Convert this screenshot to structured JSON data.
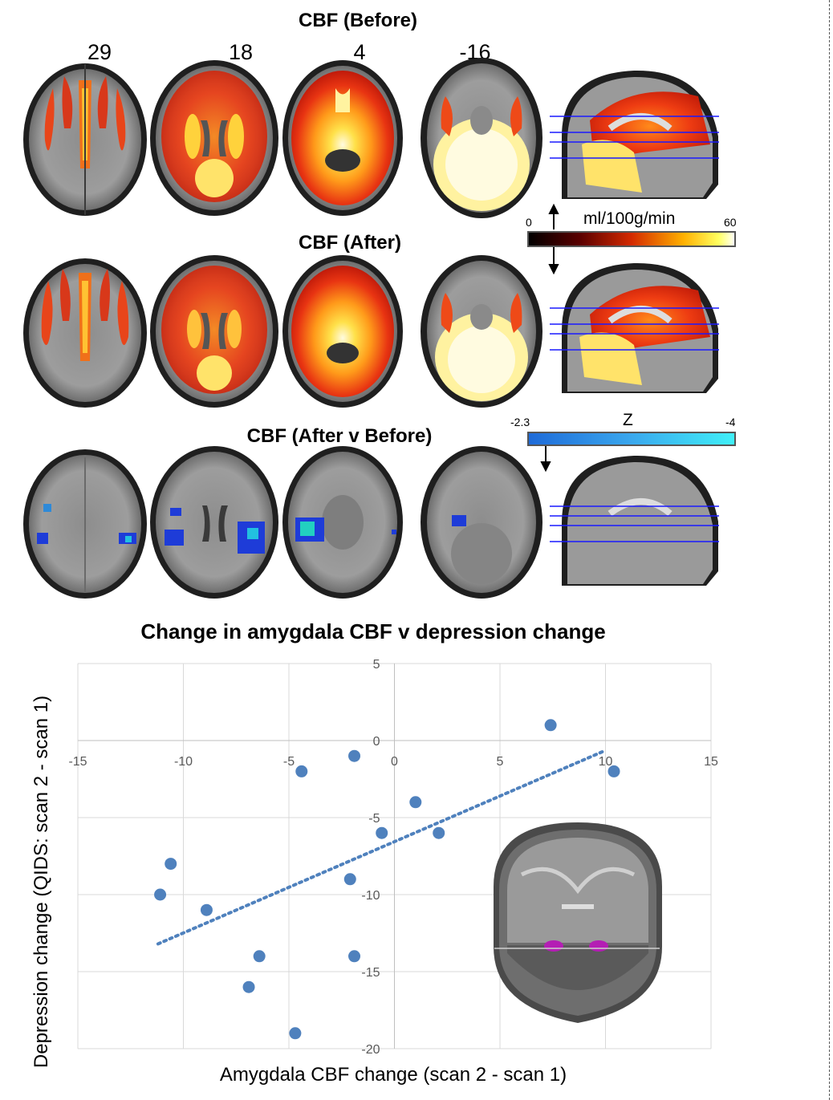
{
  "figure": {
    "panel_titles": {
      "before": "CBF (Before)",
      "after": "CBF (After)",
      "diff": "CBF (After v Before)"
    },
    "slice_numbers": [
      "29",
      "18",
      "4",
      "-16"
    ],
    "colorbar_cbf": {
      "unit": "ml/100g/min",
      "min": "0",
      "max": "60"
    },
    "colorbar_z": {
      "label": "Z",
      "min": "-2.3",
      "max": "-4"
    },
    "colors": {
      "accent_blue": "#4f81bd",
      "sagittal_lines": "#1a1aff",
      "amygdala_roi": "#b41eb4"
    }
  },
  "chart_data": {
    "type": "scatter",
    "title": "Change in amygdala CBF v depression change",
    "xlabel": "Amygdala CBF change (scan 2 - scan 1)",
    "ylabel": "Depression change (QIDS: scan 2 - scan 1)",
    "xlim": [
      -15,
      15
    ],
    "ylim": [
      -20,
      5
    ],
    "x_ticks": [
      "-15",
      "-10",
      "-5",
      "0",
      "5",
      "10",
      "15"
    ],
    "y_ticks": [
      "5",
      "0",
      "-5",
      "-10",
      "-15",
      "-20"
    ],
    "grid": true,
    "points": [
      {
        "x": 7.4,
        "y": 1
      },
      {
        "x": 10.4,
        "y": -2
      },
      {
        "x": -1.9,
        "y": -1
      },
      {
        "x": -4.4,
        "y": -2
      },
      {
        "x": 1.0,
        "y": -4
      },
      {
        "x": -0.6,
        "y": -6
      },
      {
        "x": 2.1,
        "y": -6
      },
      {
        "x": -10.6,
        "y": -8
      },
      {
        "x": -11.1,
        "y": -10
      },
      {
        "x": -2.1,
        "y": -9
      },
      {
        "x": -8.9,
        "y": -11
      },
      {
        "x": -6.4,
        "y": -14
      },
      {
        "x": -1.9,
        "y": -14
      },
      {
        "x": -6.9,
        "y": -16
      },
      {
        "x": -4.7,
        "y": -19
      }
    ],
    "trendline": {
      "style": "dotted",
      "from": {
        "x": -11.2,
        "y": -13.2
      },
      "to": {
        "x": 9.9,
        "y": -0.7
      }
    }
  }
}
